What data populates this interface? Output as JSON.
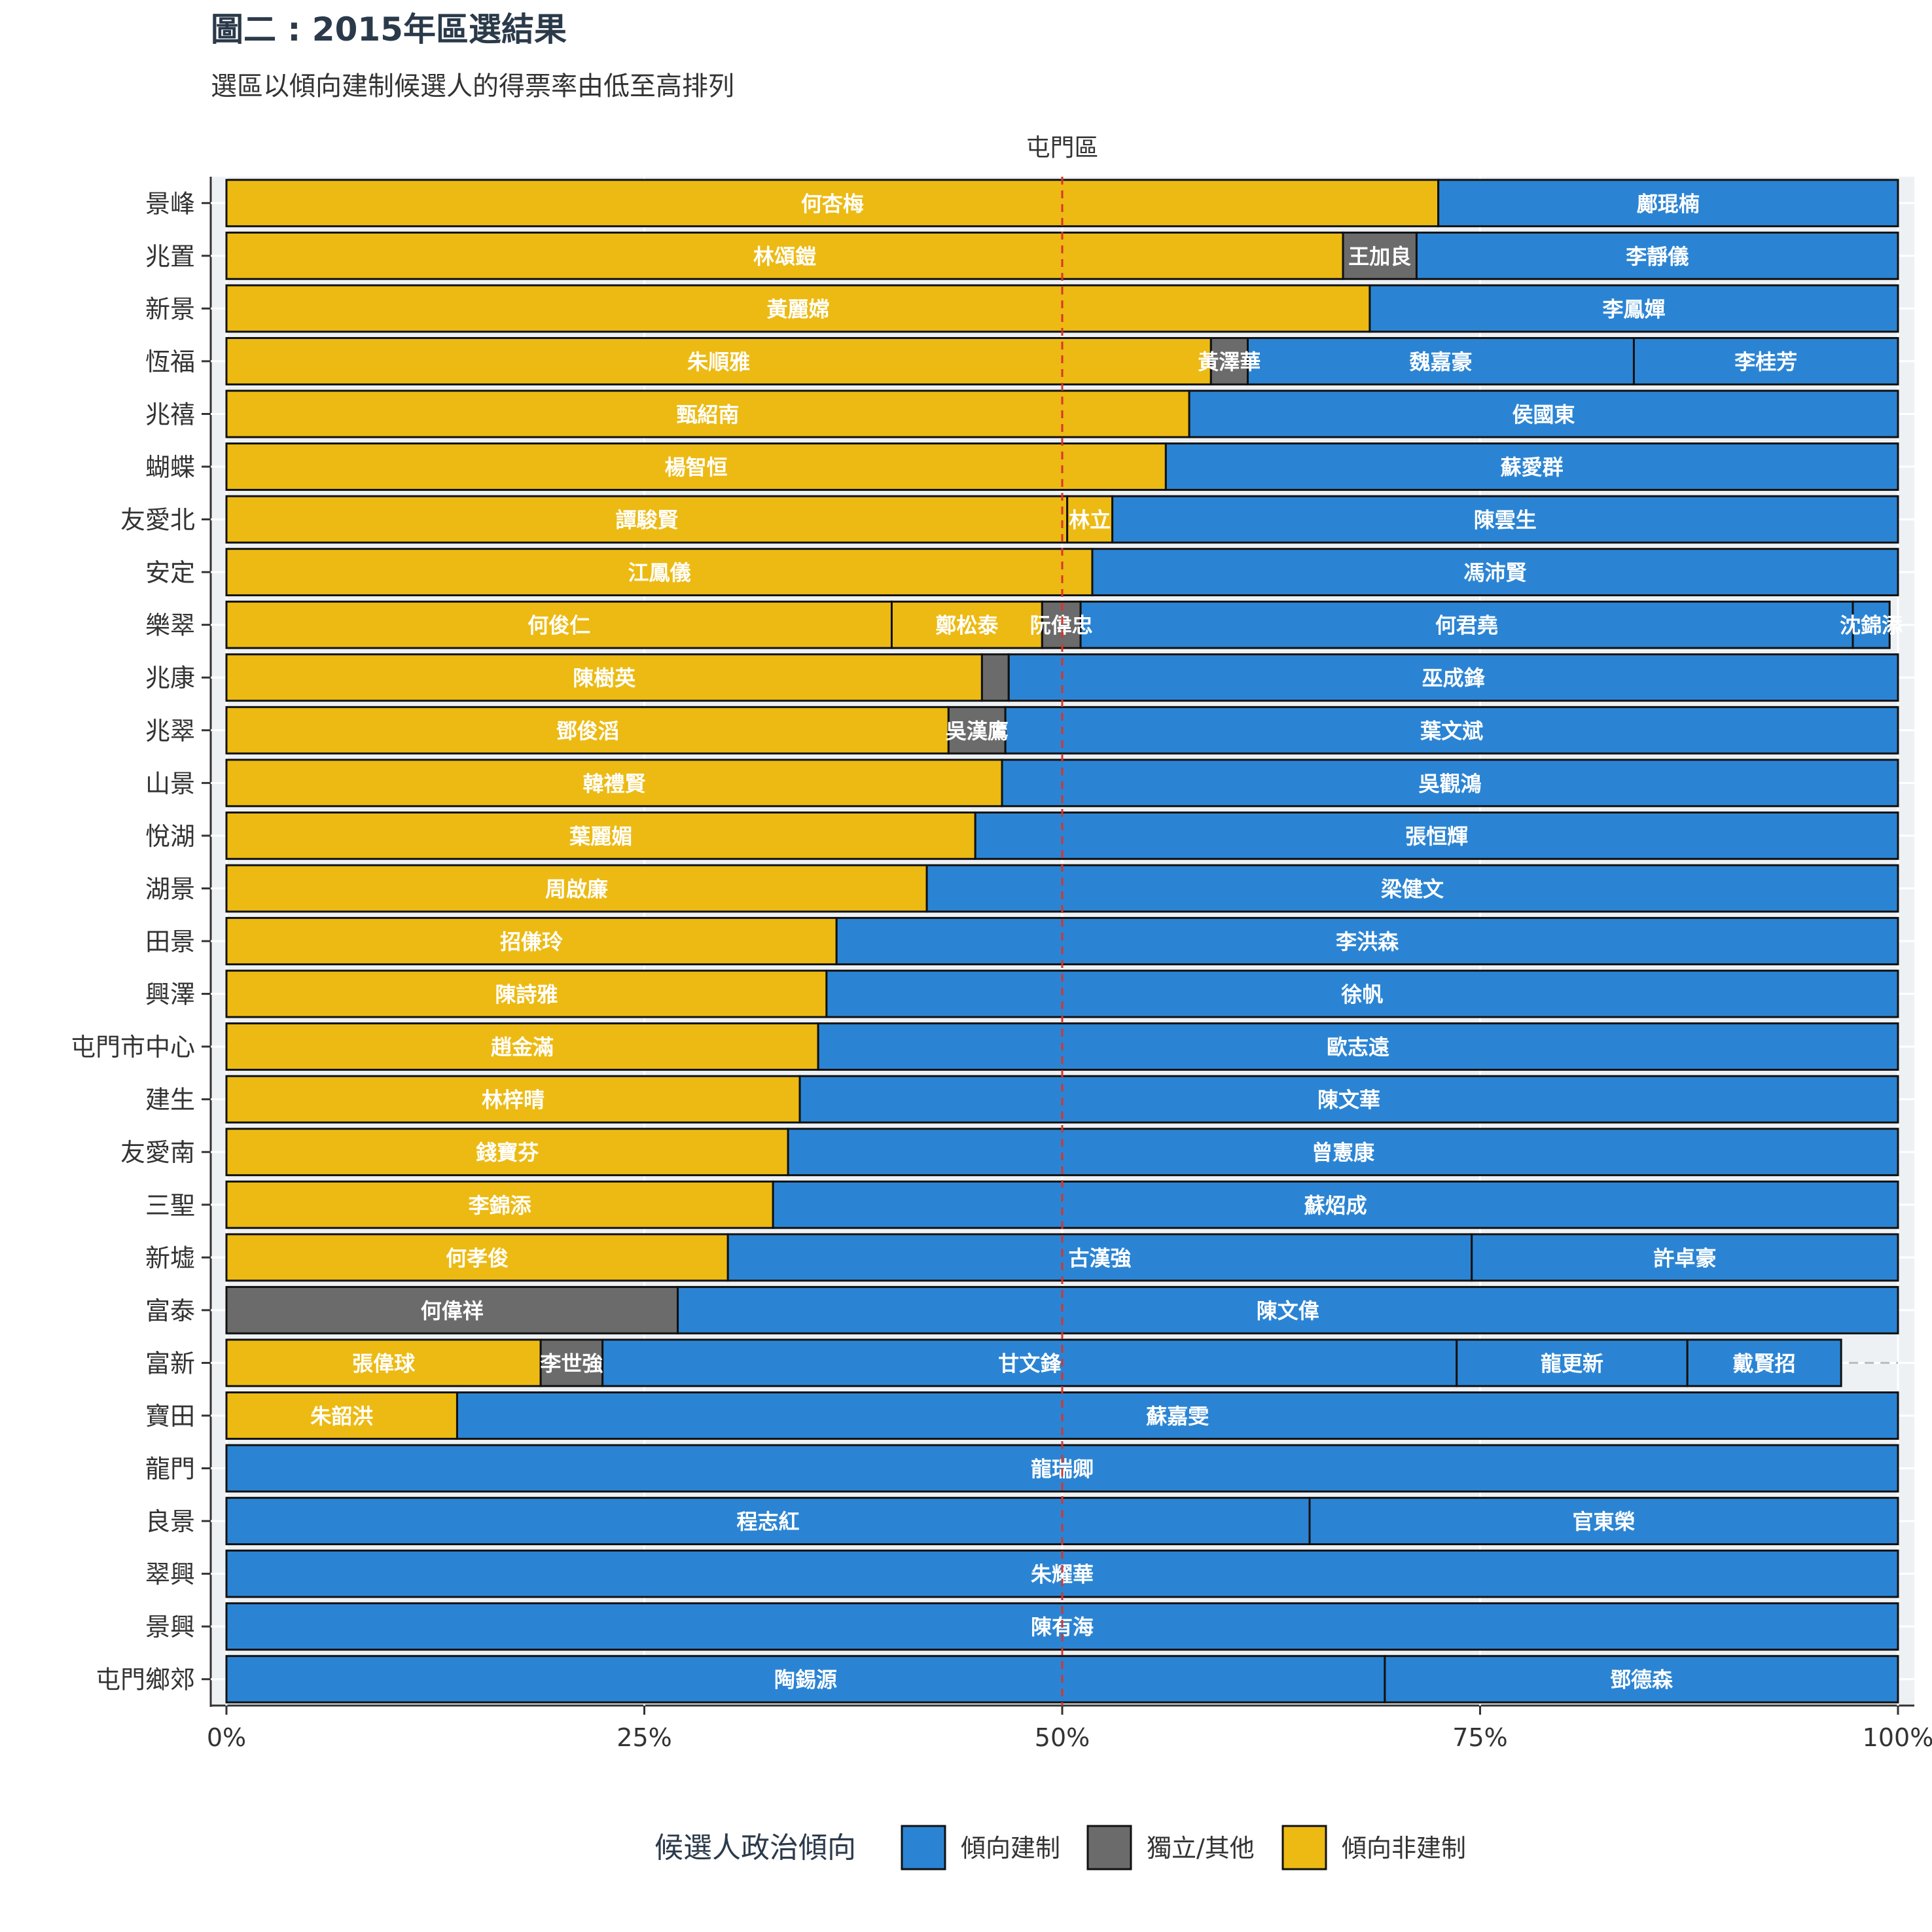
{
  "chart_data": {
    "type": "bar",
    "orientation": "horizontal-stacked-percent",
    "title": "圖二 : 2015年區選結果",
    "subtitle": "選區以傾向建制候選人的得票率由低至高排列",
    "facet_label": "屯門區",
    "xlim": [
      0,
      1
    ],
    "x_ticks": [
      0,
      0.25,
      0.5,
      0.75,
      1
    ],
    "x_tick_labels": [
      "0%",
      "25%",
      "50%",
      "75%",
      "100%"
    ],
    "reference_line": 0.5,
    "grid": true,
    "legend_position": "bottom",
    "legend": {
      "title": "候選人政治傾向",
      "items": [
        {
          "key": "pro",
          "label": "傾向建制",
          "color": "#2b84d3"
        },
        {
          "key": "ind",
          "label": "獨立/其他",
          "color": "#6b6b6b"
        },
        {
          "key": "dem",
          "label": "傾向非建制",
          "color": "#ecba13"
        }
      ]
    },
    "colors": {
      "dem": "#ecba13",
      "ind": "#6b6b6b",
      "pro": "#2b84d3"
    },
    "districts": [
      {
        "name": "景峰",
        "candidates": [
          {
            "name": "何杏梅",
            "camp": "dem",
            "share": 0.725
          },
          {
            "name": "鄺琨楠",
            "camp": "pro",
            "share": 0.275
          }
        ]
      },
      {
        "name": "兆置",
        "candidates": [
          {
            "name": "林頌鎧",
            "camp": "dem",
            "share": 0.668
          },
          {
            "name": "王加良",
            "camp": "ind",
            "share": 0.044
          },
          {
            "name": "李靜儀",
            "camp": "pro",
            "share": 0.288
          }
        ]
      },
      {
        "name": "新景",
        "candidates": [
          {
            "name": "黃麗嫦",
            "camp": "dem",
            "share": 0.684
          },
          {
            "name": "李鳳嬋",
            "camp": "pro",
            "share": 0.316
          }
        ]
      },
      {
        "name": "恆福",
        "candidates": [
          {
            "name": "朱順雅",
            "camp": "dem",
            "share": 0.589
          },
          {
            "name": "黃澤華",
            "camp": "ind",
            "share": 0.022
          },
          {
            "name": "魏嘉豪",
            "camp": "pro",
            "share": 0.231
          },
          {
            "name": "李桂芳",
            "camp": "pro",
            "share": 0.158
          }
        ]
      },
      {
        "name": "兆禧",
        "candidates": [
          {
            "name": "甄紹南",
            "camp": "dem",
            "share": 0.576
          },
          {
            "name": "侯國東",
            "camp": "pro",
            "share": 0.424
          }
        ]
      },
      {
        "name": "蝴蝶",
        "candidates": [
          {
            "name": "楊智恒",
            "camp": "dem",
            "share": 0.562
          },
          {
            "name": "蘇愛群",
            "camp": "pro",
            "share": 0.438
          }
        ]
      },
      {
        "name": "友愛北",
        "candidates": [
          {
            "name": "譚駿賢",
            "camp": "dem",
            "share": 0.503
          },
          {
            "name": "林立",
            "camp": "dem",
            "share": 0.027
          },
          {
            "name": "陳雲生",
            "camp": "pro",
            "share": 0.47
          }
        ]
      },
      {
        "name": "安定",
        "candidates": [
          {
            "name": "江鳳儀",
            "camp": "dem",
            "share": 0.518
          },
          {
            "name": "馮沛賢",
            "camp": "pro",
            "share": 0.482
          }
        ]
      },
      {
        "name": "樂翠",
        "candidates": [
          {
            "name": "何俊仁",
            "camp": "dem",
            "share": 0.398
          },
          {
            "name": "鄭松泰",
            "camp": "dem",
            "share": 0.09
          },
          {
            "name": "阮偉忠",
            "camp": "ind",
            "share": 0.023
          },
          {
            "name": "何君堯",
            "camp": "pro",
            "share": 0.462
          },
          {
            "name": "沈錦添",
            "camp": "pro",
            "share": 0.022
          }
        ]
      },
      {
        "name": "兆康",
        "candidates": [
          {
            "name": "陳樹英",
            "camp": "dem",
            "share": 0.452
          },
          {
            "name": "",
            "camp": "ind",
            "share": 0.016
          },
          {
            "name": "巫成鋒",
            "camp": "pro",
            "share": 0.532
          }
        ]
      },
      {
        "name": "兆翠",
        "candidates": [
          {
            "name": "鄧俊滔",
            "camp": "dem",
            "share": 0.432
          },
          {
            "name": "吳漢鷹",
            "camp": "ind",
            "share": 0.034
          },
          {
            "name": "葉文斌",
            "camp": "pro",
            "share": 0.534
          }
        ]
      },
      {
        "name": "山景",
        "candidates": [
          {
            "name": "韓禮賢",
            "camp": "dem",
            "share": 0.464
          },
          {
            "name": "吳觀鴻",
            "camp": "pro",
            "share": 0.536
          }
        ]
      },
      {
        "name": "悅湖",
        "candidates": [
          {
            "name": "葉麗媚",
            "camp": "dem",
            "share": 0.448
          },
          {
            "name": "張恒輝",
            "camp": "pro",
            "share": 0.552
          }
        ]
      },
      {
        "name": "湖景",
        "candidates": [
          {
            "name": "周啟廉",
            "camp": "dem",
            "share": 0.419
          },
          {
            "name": "梁健文",
            "camp": "pro",
            "share": 0.581
          }
        ]
      },
      {
        "name": "田景",
        "candidates": [
          {
            "name": "招傔玲",
            "camp": "dem",
            "share": 0.365
          },
          {
            "name": "李洪森",
            "camp": "pro",
            "share": 0.635
          }
        ]
      },
      {
        "name": "興澤",
        "candidates": [
          {
            "name": "陳詩雅",
            "camp": "dem",
            "share": 0.359
          },
          {
            "name": "徐帆",
            "camp": "pro",
            "share": 0.641
          }
        ]
      },
      {
        "name": "屯門市中心",
        "candidates": [
          {
            "name": "趙金滿",
            "camp": "dem",
            "share": 0.354
          },
          {
            "name": "歐志遠",
            "camp": "pro",
            "share": 0.646
          }
        ]
      },
      {
        "name": "建生",
        "candidates": [
          {
            "name": "林梓晴",
            "camp": "dem",
            "share": 0.343
          },
          {
            "name": "陳文華",
            "camp": "pro",
            "share": 0.657
          }
        ]
      },
      {
        "name": "友愛南",
        "candidates": [
          {
            "name": "錢寶芬",
            "camp": "dem",
            "share": 0.336
          },
          {
            "name": "曾憲康",
            "camp": "pro",
            "share": 0.664
          }
        ]
      },
      {
        "name": "三聖",
        "candidates": [
          {
            "name": "李錦添",
            "camp": "dem",
            "share": 0.327
          },
          {
            "name": "蘇炤成",
            "camp": "pro",
            "share": 0.673
          }
        ]
      },
      {
        "name": "新墟",
        "candidates": [
          {
            "name": "何孝俊",
            "camp": "dem",
            "share": 0.3
          },
          {
            "name": "古漢強",
            "camp": "pro",
            "share": 0.445
          },
          {
            "name": "許卓豪",
            "camp": "pro",
            "share": 0.255
          }
        ]
      },
      {
        "name": "富泰",
        "candidates": [
          {
            "name": "何偉祥",
            "camp": "ind",
            "share": 0.27
          },
          {
            "name": "陳文偉",
            "camp": "pro",
            "share": 0.73
          }
        ]
      },
      {
        "name": "富新",
        "candidates": [
          {
            "name": "張偉球",
            "camp": "dem",
            "share": 0.188
          },
          {
            "name": "李世強",
            "camp": "ind",
            "share": 0.037
          },
          {
            "name": "甘文鋒",
            "camp": "pro",
            "share": 0.511
          },
          {
            "name": "龍更新",
            "camp": "pro",
            "share": 0.138
          },
          {
            "name": "戴賢招",
            "camp": "pro",
            "share": 0.092
          }
        ]
      },
      {
        "name": "寶田",
        "candidates": [
          {
            "name": "朱韶洪",
            "camp": "dem",
            "share": 0.138
          },
          {
            "name": "蘇嘉雯",
            "camp": "pro",
            "share": 0.862
          }
        ]
      },
      {
        "name": "龍門",
        "candidates": [
          {
            "name": "龍瑞卿",
            "camp": "pro",
            "share": 1.0
          }
        ]
      },
      {
        "name": "良景",
        "candidates": [
          {
            "name": "程志紅",
            "camp": "pro",
            "share": 0.648
          },
          {
            "name": "官東榮",
            "camp": "pro",
            "share": 0.352
          }
        ]
      },
      {
        "name": "翠興",
        "candidates": [
          {
            "name": "朱耀華",
            "camp": "pro",
            "share": 1.0
          }
        ]
      },
      {
        "name": "景興",
        "candidates": [
          {
            "name": "陳有海",
            "camp": "pro",
            "share": 1.0
          }
        ]
      },
      {
        "name": "屯門鄉郊",
        "candidates": [
          {
            "name": "陶錫源",
            "camp": "pro",
            "share": 0.693
          },
          {
            "name": "鄧德森",
            "camp": "pro",
            "share": 0.307
          }
        ]
      }
    ]
  }
}
